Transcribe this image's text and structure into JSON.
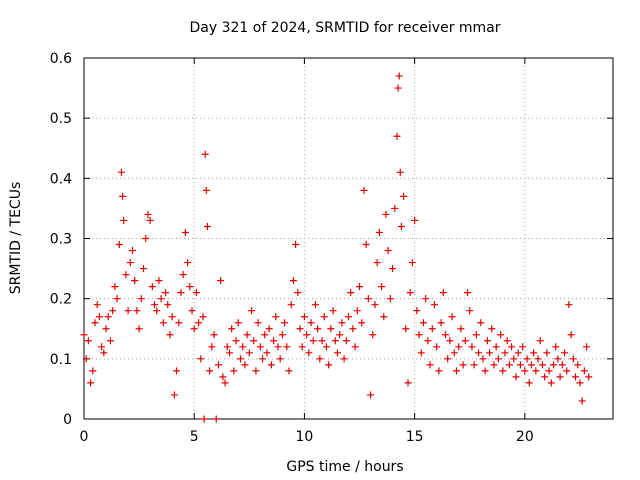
{
  "chart_data": {
    "type": "scatter",
    "title": "Day 321 of 2024, SRMTID for receiver mmar",
    "xlabel": "GPS time / hours",
    "ylabel": "SRMTID / TECUs",
    "xlim": [
      0,
      24
    ],
    "ylim": [
      0,
      0.6
    ],
    "xticks": [
      0,
      5,
      10,
      15,
      20
    ],
    "yticks": [
      0,
      0.1,
      0.2,
      0.3,
      0.4,
      0.5,
      0.6
    ],
    "grid": true,
    "marker": "+",
    "color": "#e00000",
    "series": [
      {
        "name": "mmar",
        "points": [
          [
            0.0,
            0.14
          ],
          [
            0.1,
            0.1
          ],
          [
            0.2,
            0.13
          ],
          [
            0.3,
            0.06
          ],
          [
            0.4,
            0.08
          ],
          [
            0.5,
            0.16
          ],
          [
            0.6,
            0.19
          ],
          [
            0.7,
            0.17
          ],
          [
            0.8,
            0.12
          ],
          [
            0.9,
            0.11
          ],
          [
            1.0,
            0.15
          ],
          [
            1.1,
            0.17
          ],
          [
            1.2,
            0.13
          ],
          [
            1.3,
            0.18
          ],
          [
            1.4,
            0.22
          ],
          [
            1.5,
            0.2
          ],
          [
            1.6,
            0.29
          ],
          [
            1.7,
            0.41
          ],
          [
            1.75,
            0.37
          ],
          [
            1.8,
            0.33
          ],
          [
            1.9,
            0.24
          ],
          [
            2.0,
            0.18
          ],
          [
            2.1,
            0.26
          ],
          [
            2.2,
            0.28
          ],
          [
            2.3,
            0.23
          ],
          [
            2.4,
            0.18
          ],
          [
            2.5,
            0.15
          ],
          [
            2.6,
            0.2
          ],
          [
            2.7,
            0.25
          ],
          [
            2.8,
            0.3
          ],
          [
            2.9,
            0.34
          ],
          [
            3.0,
            0.33
          ],
          [
            3.1,
            0.22
          ],
          [
            3.2,
            0.19
          ],
          [
            3.3,
            0.18
          ],
          [
            3.4,
            0.23
          ],
          [
            3.5,
            0.2
          ],
          [
            3.6,
            0.16
          ],
          [
            3.7,
            0.21
          ],
          [
            3.8,
            0.19
          ],
          [
            3.9,
            0.14
          ],
          [
            4.0,
            0.17
          ],
          [
            4.1,
            0.04
          ],
          [
            4.2,
            0.08
          ],
          [
            4.3,
            0.16
          ],
          [
            4.4,
            0.21
          ],
          [
            4.5,
            0.24
          ],
          [
            4.6,
            0.31
          ],
          [
            4.7,
            0.26
          ],
          [
            4.8,
            0.22
          ],
          [
            4.9,
            0.18
          ],
          [
            5.0,
            0.15
          ],
          [
            5.1,
            0.21
          ],
          [
            5.2,
            0.16
          ],
          [
            5.3,
            0.1
          ],
          [
            5.4,
            0.17
          ],
          [
            5.45,
            0.0
          ],
          [
            5.5,
            0.44
          ],
          [
            5.55,
            0.38
          ],
          [
            5.6,
            0.32
          ],
          [
            5.7,
            0.08
          ],
          [
            5.8,
            0.12
          ],
          [
            5.9,
            0.14
          ],
          [
            6.0,
            0.0
          ],
          [
            6.1,
            0.09
          ],
          [
            6.2,
            0.23
          ],
          [
            6.3,
            0.07
          ],
          [
            6.4,
            0.06
          ],
          [
            6.5,
            0.12
          ],
          [
            6.6,
            0.11
          ],
          [
            6.7,
            0.15
          ],
          [
            6.8,
            0.08
          ],
          [
            6.9,
            0.13
          ],
          [
            7.0,
            0.16
          ],
          [
            7.1,
            0.1
          ],
          [
            7.2,
            0.12
          ],
          [
            7.3,
            0.09
          ],
          [
            7.4,
            0.14
          ],
          [
            7.5,
            0.11
          ],
          [
            7.6,
            0.18
          ],
          [
            7.7,
            0.13
          ],
          [
            7.8,
            0.08
          ],
          [
            7.9,
            0.16
          ],
          [
            8.0,
            0.12
          ],
          [
            8.1,
            0.1
          ],
          [
            8.2,
            0.14
          ],
          [
            8.3,
            0.11
          ],
          [
            8.4,
            0.15
          ],
          [
            8.5,
            0.09
          ],
          [
            8.6,
            0.13
          ],
          [
            8.7,
            0.17
          ],
          [
            8.8,
            0.12
          ],
          [
            8.9,
            0.1
          ],
          [
            9.0,
            0.14
          ],
          [
            9.1,
            0.16
          ],
          [
            9.2,
            0.12
          ],
          [
            9.3,
            0.08
          ],
          [
            9.4,
            0.19
          ],
          [
            9.5,
            0.23
          ],
          [
            9.6,
            0.29
          ],
          [
            9.7,
            0.21
          ],
          [
            9.8,
            0.15
          ],
          [
            9.9,
            0.12
          ],
          [
            10.0,
            0.17
          ],
          [
            10.1,
            0.14
          ],
          [
            10.2,
            0.11
          ],
          [
            10.3,
            0.16
          ],
          [
            10.4,
            0.13
          ],
          [
            10.5,
            0.19
          ],
          [
            10.6,
            0.15
          ],
          [
            10.7,
            0.1
          ],
          [
            10.8,
            0.13
          ],
          [
            10.9,
            0.17
          ],
          [
            11.0,
            0.12
          ],
          [
            11.1,
            0.09
          ],
          [
            11.2,
            0.15
          ],
          [
            11.3,
            0.18
          ],
          [
            11.4,
            0.13
          ],
          [
            11.5,
            0.11
          ],
          [
            11.6,
            0.14
          ],
          [
            11.7,
            0.16
          ],
          [
            11.8,
            0.1
          ],
          [
            11.9,
            0.13
          ],
          [
            12.0,
            0.17
          ],
          [
            12.1,
            0.21
          ],
          [
            12.2,
            0.15
          ],
          [
            12.3,
            0.12
          ],
          [
            12.4,
            0.18
          ],
          [
            12.5,
            0.22
          ],
          [
            12.6,
            0.16
          ],
          [
            12.7,
            0.38
          ],
          [
            12.8,
            0.29
          ],
          [
            12.9,
            0.2
          ],
          [
            13.0,
            0.04
          ],
          [
            13.1,
            0.14
          ],
          [
            13.2,
            0.19
          ],
          [
            13.3,
            0.26
          ],
          [
            13.4,
            0.31
          ],
          [
            13.5,
            0.22
          ],
          [
            13.6,
            0.17
          ],
          [
            13.7,
            0.34
          ],
          [
            13.8,
            0.28
          ],
          [
            13.9,
            0.2
          ],
          [
            14.0,
            0.25
          ],
          [
            14.1,
            0.35
          ],
          [
            14.2,
            0.47
          ],
          [
            14.25,
            0.55
          ],
          [
            14.3,
            0.57
          ],
          [
            14.35,
            0.41
          ],
          [
            14.4,
            0.32
          ],
          [
            14.5,
            0.37
          ],
          [
            14.6,
            0.15
          ],
          [
            14.7,
            0.06
          ],
          [
            14.8,
            0.21
          ],
          [
            14.9,
            0.26
          ],
          [
            15.0,
            0.33
          ],
          [
            15.1,
            0.18
          ],
          [
            15.2,
            0.14
          ],
          [
            15.3,
            0.11
          ],
          [
            15.4,
            0.16
          ],
          [
            15.5,
            0.2
          ],
          [
            15.6,
            0.13
          ],
          [
            15.7,
            0.09
          ],
          [
            15.8,
            0.15
          ],
          [
            15.9,
            0.19
          ],
          [
            16.0,
            0.12
          ],
          [
            16.1,
            0.08
          ],
          [
            16.2,
            0.16
          ],
          [
            16.3,
            0.21
          ],
          [
            16.4,
            0.14
          ],
          [
            16.5,
            0.1
          ],
          [
            16.6,
            0.13
          ],
          [
            16.7,
            0.17
          ],
          [
            16.8,
            0.11
          ],
          [
            16.9,
            0.08
          ],
          [
            17.0,
            0.12
          ],
          [
            17.1,
            0.15
          ],
          [
            17.2,
            0.09
          ],
          [
            17.3,
            0.13
          ],
          [
            17.4,
            0.21
          ],
          [
            17.5,
            0.18
          ],
          [
            17.6,
            0.12
          ],
          [
            17.7,
            0.09
          ],
          [
            17.8,
            0.14
          ],
          [
            17.9,
            0.11
          ],
          [
            18.0,
            0.16
          ],
          [
            18.1,
            0.1
          ],
          [
            18.2,
            0.08
          ],
          [
            18.3,
            0.13
          ],
          [
            18.4,
            0.11
          ],
          [
            18.5,
            0.15
          ],
          [
            18.6,
            0.09
          ],
          [
            18.7,
            0.12
          ],
          [
            18.8,
            0.1
          ],
          [
            18.9,
            0.14
          ],
          [
            19.0,
            0.08
          ],
          [
            19.1,
            0.11
          ],
          [
            19.2,
            0.13
          ],
          [
            19.3,
            0.09
          ],
          [
            19.4,
            0.12
          ],
          [
            19.5,
            0.1
          ],
          [
            19.6,
            0.07
          ],
          [
            19.7,
            0.11
          ],
          [
            19.8,
            0.09
          ],
          [
            19.9,
            0.12
          ],
          [
            20.0,
            0.08
          ],
          [
            20.1,
            0.1
          ],
          [
            20.2,
            0.06
          ],
          [
            20.3,
            0.09
          ],
          [
            20.4,
            0.11
          ],
          [
            20.5,
            0.08
          ],
          [
            20.6,
            0.1
          ],
          [
            20.7,
            0.13
          ],
          [
            20.8,
            0.09
          ],
          [
            20.9,
            0.07
          ],
          [
            21.0,
            0.11
          ],
          [
            21.1,
            0.08
          ],
          [
            21.2,
            0.06
          ],
          [
            21.3,
            0.09
          ],
          [
            21.4,
            0.12
          ],
          [
            21.5,
            0.1
          ],
          [
            21.6,
            0.07
          ],
          [
            21.7,
            0.09
          ],
          [
            21.8,
            0.11
          ],
          [
            21.9,
            0.08
          ],
          [
            22.0,
            0.19
          ],
          [
            22.1,
            0.14
          ],
          [
            22.2,
            0.1
          ],
          [
            22.3,
            0.07
          ],
          [
            22.4,
            0.09
          ],
          [
            22.5,
            0.06
          ],
          [
            22.6,
            0.03
          ],
          [
            22.7,
            0.08
          ],
          [
            22.8,
            0.12
          ],
          [
            22.9,
            0.07
          ]
        ]
      }
    ]
  }
}
